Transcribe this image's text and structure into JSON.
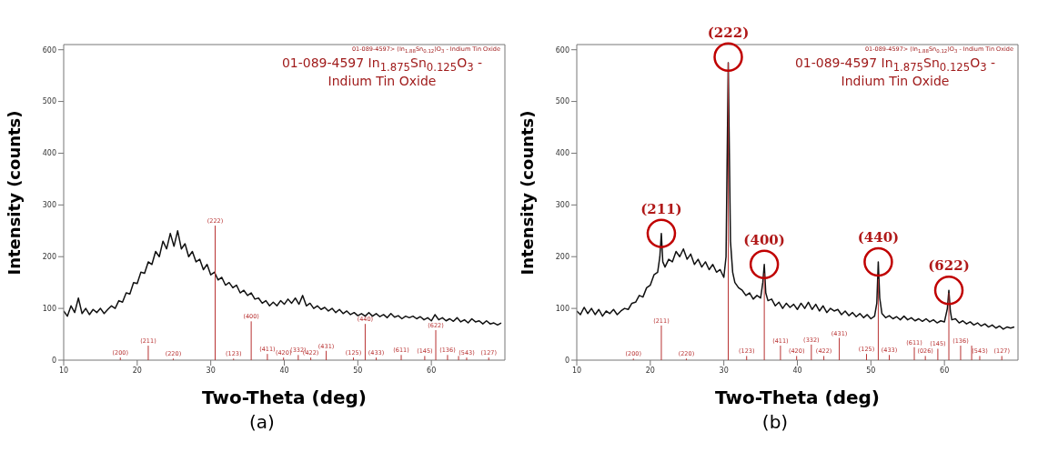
{
  "chart_data": [
    {
      "type": "line",
      "title": "(a)",
      "xlabel": "Two-Theta (deg)",
      "ylabel": "Intensity (counts)",
      "xlim": [
        10,
        70
      ],
      "xticks": [
        10,
        20,
        30,
        40,
        50,
        60
      ],
      "ylim": [
        0,
        610
      ],
      "yticks": [
        0,
        100,
        200,
        300,
        400,
        500,
        600
      ],
      "annotations": [
        "01-089-4597 In$_{1.875}$Sn$_{0.125}$O$_{3}$ - Indium Tin Oxide",
        "01-089-4597> (In$_{1.88}$Sn$_{0.12}$)O$_{3}$ - Indium Tin Oxide",
        {
          "text": "(200)",
          "x": 17.7,
          "y": 5
        },
        {
          "text": "(211)",
          "x": 21.5,
          "y": 28
        },
        {
          "text": "(220)",
          "x": 24.9,
          "y": 3
        },
        {
          "text": "(222)",
          "x": 30.6,
          "y": 260
        },
        {
          "text": "(123)",
          "x": 33.1,
          "y": 3
        },
        {
          "text": "(400)",
          "x": 35.5,
          "y": 75
        },
        {
          "text": "(411)",
          "x": 37.7,
          "y": 12
        },
        {
          "text": "(420)",
          "x": 39.9,
          "y": 5
        },
        {
          "text": "(332)",
          "x": 41.9,
          "y": 10
        },
        {
          "text": "(422)",
          "x": 43.6,
          "y": 5
        },
        {
          "text": "(431)",
          "x": 45.7,
          "y": 18
        },
        {
          "text": "(125)",
          "x": 49.4,
          "y": 5
        },
        {
          "text": "(440)",
          "x": 51.0,
          "y": 70
        },
        {
          "text": "(433)",
          "x": 52.5,
          "y": 5
        },
        {
          "text": "(611)",
          "x": 55.9,
          "y": 10
        },
        {
          "text": "(145)",
          "x": 59.1,
          "y": 8
        },
        {
          "text": "(622)",
          "x": 60.6,
          "y": 58
        },
        {
          "text": "(136)",
          "x": 62.2,
          "y": 10
        },
        {
          "text": "(543)",
          "x": 64.8,
          "y": 5
        },
        {
          "text": "(127)",
          "x": 67.8,
          "y": 5
        }
      ],
      "series": [
        {
          "color": "#111111",
          "x": [
            10,
            10.5,
            11,
            11.5,
            12,
            12.5,
            13,
            13.5,
            14,
            14.5,
            15,
            15.5,
            16,
            16.5,
            17,
            17.5,
            18,
            18.5,
            19,
            19.5,
            20,
            20.5,
            21,
            21.5,
            22,
            22.5,
            23,
            23.5,
            24,
            24.5,
            25,
            25.5,
            26,
            26.5,
            27,
            27.5,
            28,
            28.5,
            29,
            29.5,
            30,
            30.5,
            31,
            31.5,
            32,
            32.5,
            33,
            33.5,
            34,
            34.5,
            35,
            35.5,
            36,
            36.5,
            37,
            37.5,
            38,
            38.5,
            39,
            39.5,
            40,
            40.5,
            41,
            41.5,
            42,
            42.5,
            43,
            43.5,
            44,
            44.5,
            45,
            45.5,
            46,
            46.5,
            47,
            47.5,
            48,
            48.5,
            49,
            49.5,
            50,
            50.5,
            51,
            51.5,
            52,
            52.5,
            53,
            53.5,
            54,
            54.5,
            55,
            55.5,
            56,
            56.5,
            57,
            57.5,
            58,
            58.5,
            59,
            59.5,
            60,
            60.5,
            61,
            61.5,
            62,
            62.5,
            63,
            63.5,
            64,
            64.5,
            65,
            65.5,
            66,
            66.5,
            67,
            67.5,
            68,
            68.5,
            69,
            69.5
          ],
          "values": [
            95,
            85,
            105,
            92,
            120,
            90,
            100,
            88,
            98,
            92,
            100,
            90,
            98,
            105,
            100,
            115,
            112,
            130,
            128,
            150,
            148,
            170,
            168,
            190,
            185,
            210,
            200,
            230,
            215,
            245,
            220,
            250,
            215,
            225,
            200,
            210,
            190,
            195,
            175,
            185,
            165,
            170,
            155,
            160,
            145,
            150,
            140,
            145,
            130,
            135,
            125,
            130,
            118,
            120,
            110,
            115,
            105,
            112,
            105,
            115,
            108,
            118,
            110,
            120,
            108,
            125,
            105,
            110,
            100,
            105,
            98,
            102,
            95,
            100,
            92,
            98,
            90,
            95,
            88,
            92,
            86,
            90,
            85,
            92,
            85,
            90,
            84,
            88,
            82,
            90,
            83,
            86,
            80,
            85,
            82,
            85,
            80,
            84,
            78,
            82,
            76,
            88,
            78,
            82,
            76,
            80,
            75,
            82,
            74,
            78,
            72,
            80,
            74,
            76,
            70,
            76,
            70,
            72,
            68,
            72
          ]
        },
        {
          "type": "bar",
          "color": "#b83232",
          "x": [
            17.7,
            21.5,
            24.9,
            30.6,
            33.1,
            35.5,
            37.7,
            39.9,
            41.9,
            43.6,
            45.7,
            49.4,
            51.0,
            52.5,
            55.9,
            59.1,
            60.6,
            62.2,
            63.7,
            64.8,
            67.8
          ],
          "values": [
            5,
            28,
            3,
            260,
            3,
            75,
            12,
            5,
            10,
            5,
            18,
            5,
            70,
            5,
            10,
            8,
            58,
            10,
            8,
            5,
            5
          ]
        }
      ]
    },
    {
      "type": "line",
      "title": "(b)",
      "xlabel": "Two-Theta (deg)",
      "ylabel": "Intensity (counts)",
      "xlim": [
        10,
        70
      ],
      "xticks": [
        10,
        20,
        30,
        40,
        50,
        60
      ],
      "ylim": [
        0,
        610
      ],
      "yticks": [
        0,
        100,
        200,
        300,
        400,
        500,
        600
      ],
      "annotations": [
        "01-089-4597 In$_{1.875}$Sn$_{0.125}$O$_{3}$ - Indium Tin Oxide",
        "01-089-4597> (In$_{1.88}$Sn$_{0.12}$)O$_{3}$ - Indium Tin Oxide",
        {
          "text": "(211)",
          "x": 21.5,
          "y": 245
        },
        {
          "text": "(222)",
          "x": 30.6,
          "y": 586
        },
        {
          "text": "(400)",
          "x": 35.5,
          "y": 185
        },
        {
          "text": "(440)",
          "x": 51.0,
          "y": 190
        },
        {
          "text": "(622)",
          "x": 60.6,
          "y": 135
        },
        {
          "text": "(200)",
          "x": 17.7,
          "y": 3
        },
        {
          "text": "(211)",
          "x": 21.5,
          "y": 67
        },
        {
          "text": "(220)",
          "x": 24.9,
          "y": 3
        },
        {
          "text": "(123)",
          "x": 33.1,
          "y": 8
        },
        {
          "text": "(411)",
          "x": 37.7,
          "y": 28
        },
        {
          "text": "(420)",
          "x": 39.9,
          "y": 8
        },
        {
          "text": "(332)",
          "x": 41.9,
          "y": 30
        },
        {
          "text": "(422)",
          "x": 43.6,
          "y": 8
        },
        {
          "text": "(431)",
          "x": 45.7,
          "y": 43
        },
        {
          "text": "(125)",
          "x": 49.4,
          "y": 12
        },
        {
          "text": "(433)",
          "x": 52.5,
          "y": 10
        },
        {
          "text": "(611)",
          "x": 55.9,
          "y": 25
        },
        {
          "text": "(026)",
          "x": 57.4,
          "y": 8
        },
        {
          "text": "(145)",
          "x": 59.1,
          "y": 22
        },
        {
          "text": "(136)",
          "x": 62.2,
          "y": 28
        },
        {
          "text": "(543)",
          "x": 64.8,
          "y": 8
        },
        {
          "text": "(127)",
          "x": 67.8,
          "y": 8
        }
      ],
      "series": [
        {
          "color": "#111111",
          "x": [
            10,
            10.5,
            11,
            11.5,
            12,
            12.5,
            13,
            13.5,
            14,
            14.5,
            15,
            15.5,
            16,
            16.5,
            17,
            17.5,
            18,
            18.5,
            19,
            19.5,
            20,
            20.5,
            21,
            21.3,
            21.5,
            21.7,
            22,
            22.5,
            23,
            23.5,
            24,
            24.5,
            25,
            25.5,
            26,
            26.5,
            27,
            27.5,
            28,
            28.5,
            29,
            29.5,
            30,
            30.3,
            30.6,
            30.9,
            31.2,
            31.5,
            32,
            32.5,
            33,
            33.5,
            34,
            34.5,
            35,
            35.3,
            35.5,
            35.7,
            36,
            36.5,
            37,
            37.5,
            38,
            38.5,
            39,
            39.5,
            40,
            40.5,
            41,
            41.5,
            42,
            42.5,
            43,
            43.5,
            44,
            44.5,
            45,
            45.5,
            46,
            46.5,
            47,
            47.5,
            48,
            48.5,
            49,
            49.5,
            50,
            50.5,
            50.8,
            51.0,
            51.2,
            51.5,
            52,
            52.5,
            53,
            53.5,
            54,
            54.5,
            55,
            55.5,
            56,
            56.5,
            57,
            57.5,
            58,
            58.5,
            59,
            59.5,
            60,
            60.4,
            60.6,
            60.8,
            61,
            61.5,
            62,
            62.5,
            63,
            63.5,
            64,
            64.5,
            65,
            65.5,
            66,
            66.5,
            67,
            67.5,
            68,
            68.5,
            69,
            69.5
          ],
          "values": [
            95,
            88,
            102,
            90,
            100,
            88,
            98,
            85,
            95,
            90,
            98,
            88,
            95,
            100,
            98,
            110,
            112,
            125,
            122,
            140,
            145,
            165,
            170,
            200,
            245,
            190,
            180,
            195,
            190,
            210,
            200,
            215,
            195,
            205,
            185,
            195,
            180,
            190,
            175,
            185,
            170,
            175,
            160,
            200,
            575,
            230,
            170,
            150,
            140,
            135,
            125,
            130,
            118,
            125,
            120,
            150,
            185,
            130,
            115,
            118,
            105,
            112,
            100,
            110,
            102,
            108,
            98,
            110,
            100,
            112,
            98,
            108,
            95,
            105,
            92,
            100,
            95,
            98,
            88,
            95,
            86,
            92,
            84,
            90,
            82,
            88,
            80,
            85,
            110,
            190,
            120,
            90,
            82,
            86,
            80,
            84,
            78,
            85,
            78,
            82,
            76,
            80,
            75,
            80,
            74,
            78,
            72,
            76,
            74,
            100,
            135,
            95,
            78,
            80,
            72,
            76,
            70,
            74,
            68,
            72,
            66,
            70,
            64,
            68,
            62,
            66,
            60,
            64,
            62,
            64
          ]
        },
        {
          "type": "bar",
          "color": "#b83232",
          "x": [
            17.7,
            21.5,
            24.9,
            30.6,
            33.1,
            35.5,
            37.7,
            39.9,
            41.9,
            43.6,
            45.7,
            49.4,
            51.0,
            52.5,
            55.9,
            57.4,
            59.1,
            60.6,
            62.2,
            63.7,
            64.8,
            67.8
          ],
          "values": [
            3,
            67,
            3,
            575,
            8,
            168,
            28,
            8,
            30,
            8,
            43,
            12,
            157,
            10,
            25,
            8,
            22,
            130,
            28,
            28,
            8,
            8
          ]
        }
      ]
    }
  ]
}
